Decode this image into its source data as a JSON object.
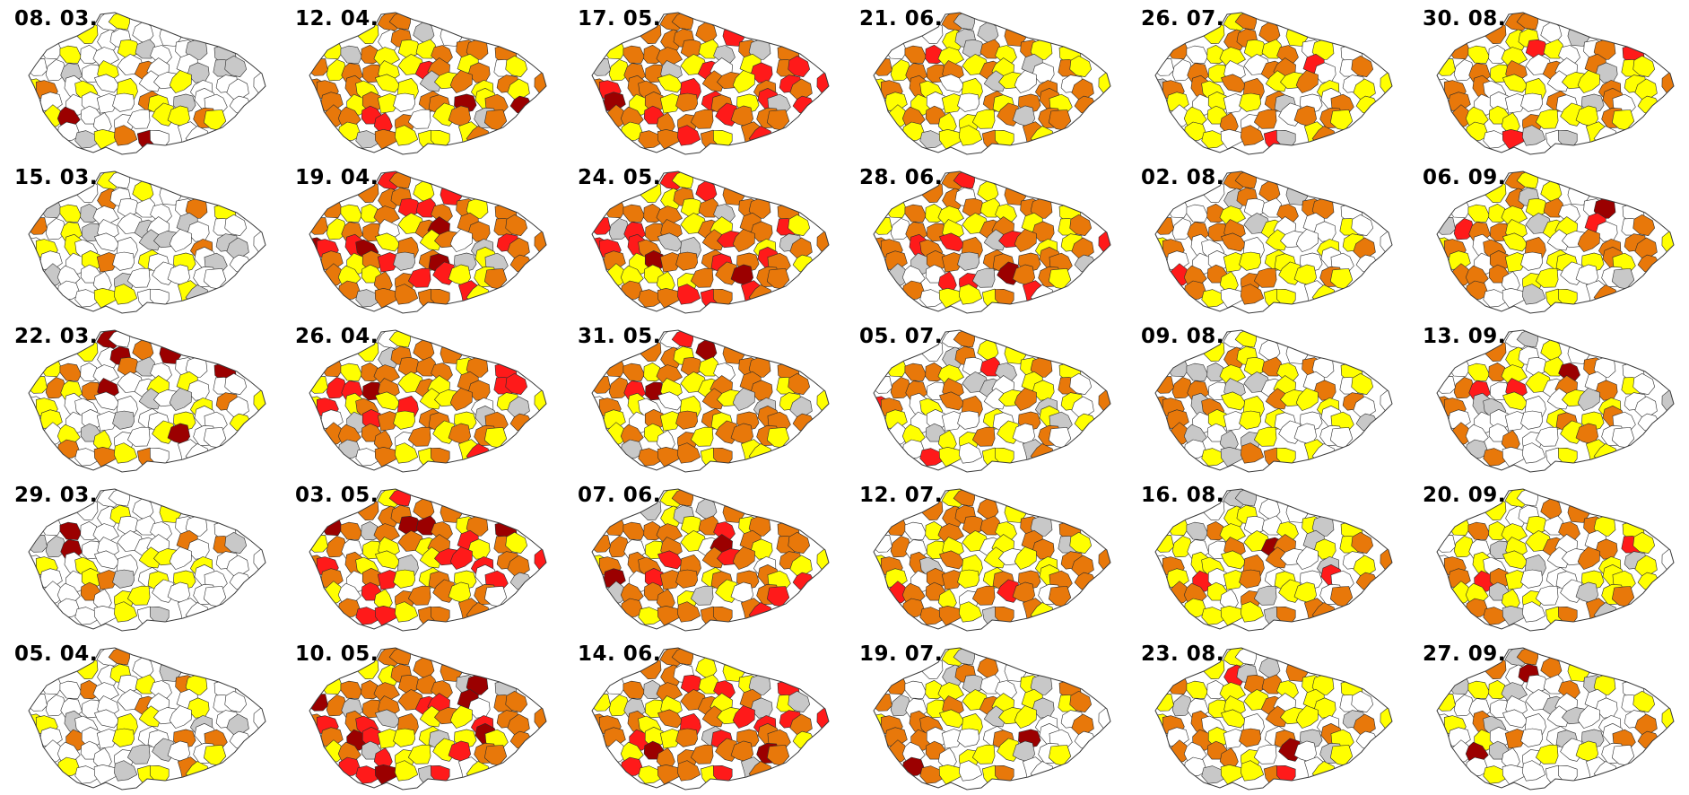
{
  "figure": {
    "panels": [
      {
        "date": "08. 03.",
        "level": 0
      },
      {
        "date": "12. 04.",
        "level": 2
      },
      {
        "date": "17. 05.",
        "level": 3
      },
      {
        "date": "21. 06.",
        "level": 2
      },
      {
        "date": "26. 07.",
        "level": 1
      },
      {
        "date": "30. 08.",
        "level": 1
      },
      {
        "date": "15. 03.",
        "level": 0
      },
      {
        "date": "19. 04.",
        "level": 3
      },
      {
        "date": "24. 05.",
        "level": 3
      },
      {
        "date": "28. 06.",
        "level": 2
      },
      {
        "date": "02. 08.",
        "level": 1
      },
      {
        "date": "06. 09.",
        "level": 1
      },
      {
        "date": "22. 03.",
        "level": 0
      },
      {
        "date": "26. 04.",
        "level": 3
      },
      {
        "date": "31. 05.",
        "level": 2
      },
      {
        "date": "05. 07.",
        "level": 1
      },
      {
        "date": "09. 08.",
        "level": 1
      },
      {
        "date": "13. 09.",
        "level": 1
      },
      {
        "date": "29. 03.",
        "level": 0
      },
      {
        "date": "03. 05.",
        "level": 3
      },
      {
        "date": "07. 06.",
        "level": 2
      },
      {
        "date": "12. 07.",
        "level": 2
      },
      {
        "date": "16. 08.",
        "level": 1
      },
      {
        "date": "20. 09.",
        "level": 1
      },
      {
        "date": "05. 04.",
        "level": 0
      },
      {
        "date": "10. 05.",
        "level": 3
      },
      {
        "date": "14. 06.",
        "level": 2
      },
      {
        "date": "19. 07.",
        "level": 1
      },
      {
        "date": "23. 08.",
        "level": 1
      },
      {
        "date": "27. 09.",
        "level": 0
      }
    ],
    "colors": {
      "none": "#ffffff",
      "nodata": "#c8c8c8",
      "low": "#ffff00",
      "medium": "#e8780a",
      "high": "#ff1a1a",
      "very_high": "#9b0000"
    }
  }
}
